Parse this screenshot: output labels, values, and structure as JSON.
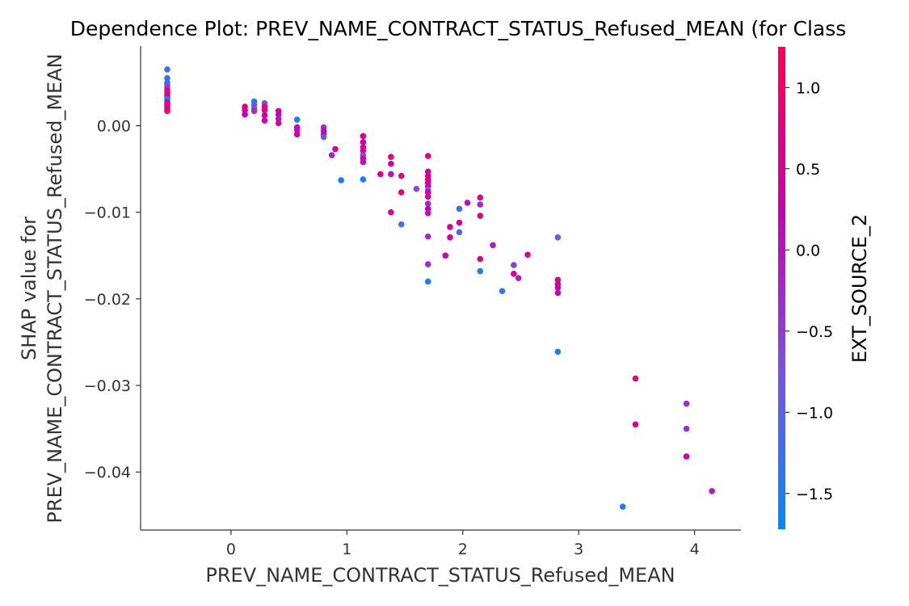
{
  "chart_data": {
    "type": "scatter",
    "title": "Dependence Plot: PREV_NAME_CONTRACT_STATUS_Refused_MEAN (for Class",
    "xlabel": "PREV_NAME_CONTRACT_STATUS_Refused_MEAN",
    "ylabel_lines": [
      "SHAP value for",
      "PREV_NAME_CONTRACT_STATUS_Refused_MEAN"
    ],
    "xlim": [
      -0.78,
      4.4
    ],
    "ylim": [
      -0.0467,
      0.0092
    ],
    "x_ticks": [
      0,
      1,
      2,
      3,
      4
    ],
    "x_tick_labels": [
      "0",
      "1",
      "2",
      "3",
      "4"
    ],
    "y_ticks": [
      0.0,
      -0.01,
      -0.02,
      -0.03,
      -0.04
    ],
    "y_tick_labels": [
      "0.00",
      "−0.01",
      "−0.02",
      "−0.03",
      "−0.04"
    ],
    "grid": false,
    "colorbar": {
      "label": "EXT_SOURCE_2",
      "range": [
        -1.72,
        1.25
      ],
      "ticks": [
        1.0,
        0.5,
        0.0,
        -0.5,
        -1.0,
        -1.5
      ],
      "tick_labels": [
        "1.0",
        "0.5",
        "0.0",
        "−0.5",
        "−1.0",
        "−1.5"
      ],
      "colors": [
        "#008afb",
        "#7b52e0",
        "#c800b0",
        "#ff0052"
      ]
    },
    "points": [
      [
        -0.55,
        0.0065,
        -1.2
      ],
      [
        -0.55,
        0.0055,
        -1.1
      ],
      [
        -0.55,
        0.005,
        -1.3
      ],
      [
        -0.55,
        0.0047,
        -0.8
      ],
      [
        -0.55,
        0.0044,
        -0.5
      ],
      [
        -0.55,
        0.0041,
        0.9
      ],
      [
        -0.55,
        0.0038,
        1.0
      ],
      [
        -0.55,
        0.0035,
        0.3
      ],
      [
        -0.55,
        0.0033,
        0.6
      ],
      [
        -0.55,
        0.0031,
        -1.5
      ],
      [
        -0.55,
        0.0029,
        -1.6
      ],
      [
        -0.55,
        0.0027,
        0.2
      ],
      [
        -0.55,
        0.0025,
        0.8
      ],
      [
        -0.55,
        0.0023,
        1.1
      ],
      [
        -0.55,
        0.0021,
        0.4
      ],
      [
        -0.55,
        0.0019,
        0.7
      ],
      [
        -0.55,
        0.0017,
        0.9
      ],
      [
        0.12,
        0.0022,
        0.5
      ],
      [
        0.12,
        0.0018,
        0.6
      ],
      [
        0.12,
        0.0013,
        0.4
      ],
      [
        0.2,
        0.0028,
        -1.5
      ],
      [
        0.2,
        0.0024,
        -1.0
      ],
      [
        0.2,
        0.002,
        -0.6
      ],
      [
        0.2,
        0.0017,
        -0.3
      ],
      [
        0.29,
        0.0026,
        -0.7
      ],
      [
        0.29,
        0.0022,
        0.9
      ],
      [
        0.29,
        0.0018,
        0.6
      ],
      [
        0.29,
        0.0012,
        0.5
      ],
      [
        0.29,
        0.0006,
        0.3
      ],
      [
        0.41,
        0.0017,
        0.2
      ],
      [
        0.41,
        0.0013,
        0.4
      ],
      [
        0.41,
        0.0008,
        0.0
      ],
      [
        0.41,
        0.0003,
        0.5
      ],
      [
        0.57,
        0.0007,
        -1.5
      ],
      [
        0.57,
        -0.0002,
        0.3
      ],
      [
        0.57,
        -0.0005,
        0.0
      ],
      [
        0.57,
        -0.001,
        0.5
      ],
      [
        0.8,
        -0.0002,
        -0.3
      ],
      [
        0.8,
        -0.0006,
        0.3
      ],
      [
        0.8,
        -0.001,
        0.2
      ],
      [
        0.8,
        -0.0013,
        -0.8
      ],
      [
        0.9,
        -0.0027,
        0.4
      ],
      [
        0.87,
        -0.0034,
        -0.2
      ],
      [
        0.95,
        -0.0063,
        -1.5
      ],
      [
        1.14,
        -0.0012,
        0.5
      ],
      [
        1.14,
        -0.0019,
        0.3
      ],
      [
        1.14,
        -0.0025,
        0.7
      ],
      [
        1.14,
        -0.0029,
        0.6
      ],
      [
        1.14,
        -0.0034,
        -0.6
      ],
      [
        1.14,
        -0.0038,
        0.2
      ],
      [
        1.14,
        -0.0042,
        0.1
      ],
      [
        1.14,
        -0.0062,
        -1.5
      ],
      [
        1.29,
        -0.0056,
        0.6
      ],
      [
        1.38,
        -0.0036,
        0.9
      ],
      [
        1.38,
        -0.0044,
        0.4
      ],
      [
        1.38,
        -0.0056,
        0.1
      ],
      [
        1.38,
        -0.01,
        0.5
      ],
      [
        1.47,
        -0.0058,
        0.7
      ],
      [
        1.47,
        -0.0077,
        0.6
      ],
      [
        1.47,
        -0.0114,
        -1.2
      ],
      [
        1.6,
        -0.0073,
        -0.7
      ],
      [
        1.7,
        -0.0035,
        0.9
      ],
      [
        1.7,
        -0.0053,
        0.3
      ],
      [
        1.7,
        -0.0058,
        0.5
      ],
      [
        1.7,
        -0.0062,
        0.7
      ],
      [
        1.7,
        -0.0066,
        0.6
      ],
      [
        1.7,
        -0.007,
        0.2
      ],
      [
        1.7,
        -0.0074,
        -0.8
      ],
      [
        1.7,
        -0.0077,
        0.4
      ],
      [
        1.7,
        -0.0082,
        0.5
      ],
      [
        1.7,
        -0.009,
        -0.3
      ],
      [
        1.7,
        -0.0096,
        0.3
      ],
      [
        1.7,
        -0.0101,
        0.0
      ],
      [
        1.7,
        -0.0128,
        -0.2
      ],
      [
        1.7,
        -0.016,
        -0.3
      ],
      [
        1.7,
        -0.018,
        -1.5
      ],
      [
        1.85,
        -0.015,
        0.3
      ],
      [
        1.89,
        -0.0117,
        0.4
      ],
      [
        1.89,
        -0.0129,
        0.5
      ],
      [
        1.97,
        -0.0096,
        -1.3
      ],
      [
        1.97,
        -0.0112,
        0.6
      ],
      [
        1.97,
        -0.0123,
        -1.1
      ],
      [
        2.04,
        -0.0089,
        0.1
      ],
      [
        2.15,
        -0.0083,
        0.6
      ],
      [
        2.15,
        -0.0091,
        -0.2
      ],
      [
        2.15,
        -0.0104,
        0.8
      ],
      [
        2.15,
        -0.0154,
        0.7
      ],
      [
        2.15,
        -0.0168,
        -1.4
      ],
      [
        2.26,
        -0.0138,
        -0.2
      ],
      [
        2.34,
        -0.0191,
        -1.4
      ],
      [
        2.44,
        -0.0161,
        -0.5
      ],
      [
        2.44,
        -0.0171,
        0.6
      ],
      [
        2.48,
        -0.0176,
        -0.2
      ],
      [
        2.56,
        -0.0149,
        0.7
      ],
      [
        2.82,
        -0.0129,
        -0.8
      ],
      [
        2.82,
        -0.0178,
        0.6
      ],
      [
        2.82,
        -0.0183,
        0.4
      ],
      [
        2.82,
        -0.0187,
        0.3
      ],
      [
        2.82,
        -0.0193,
        0.2
      ],
      [
        2.82,
        -0.0261,
        -1.5
      ],
      [
        3.38,
        -0.044,
        -1.5
      ],
      [
        3.49,
        -0.0292,
        0.8
      ],
      [
        3.49,
        -0.0345,
        0.6
      ],
      [
        3.93,
        -0.0321,
        -0.3
      ],
      [
        3.93,
        -0.035,
        -0.3
      ],
      [
        3.93,
        -0.0382,
        0.3
      ],
      [
        4.15,
        -0.0422,
        -0.1
      ]
    ]
  }
}
